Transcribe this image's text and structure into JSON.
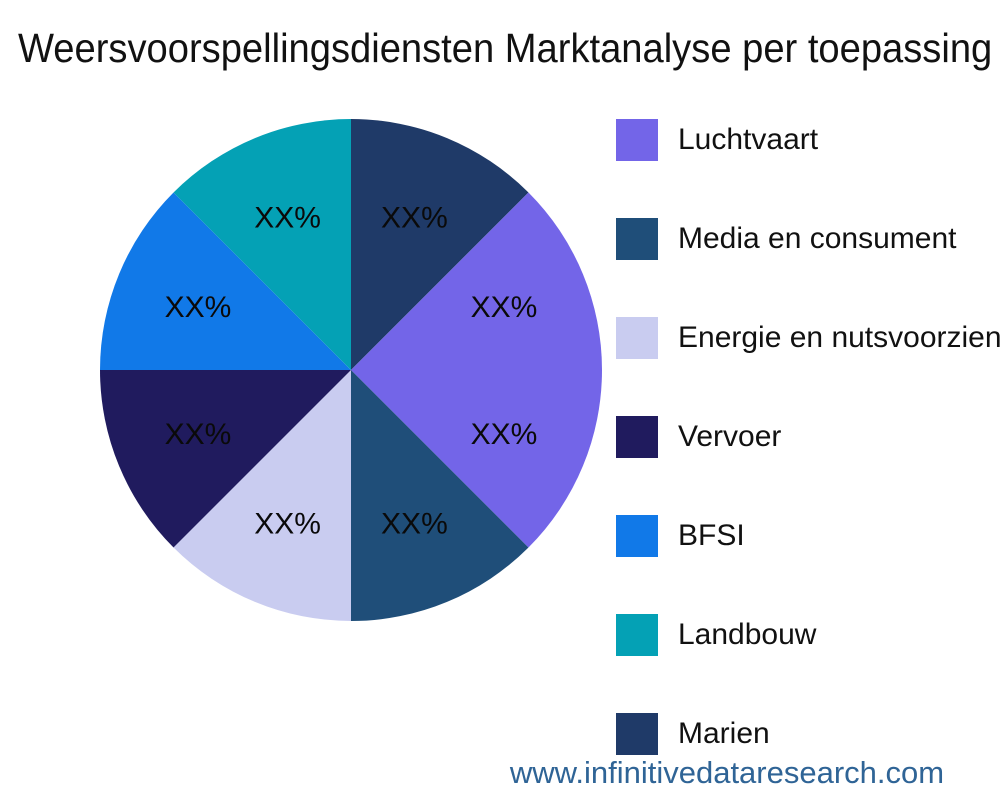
{
  "header": {
    "title": "Weersvoorspellingsdiensten Marktanalyse per toepassing"
  },
  "watermark": {
    "text": "www.infinitivedataresearch.com",
    "color": "#2F6496"
  },
  "chart_data": {
    "type": "pie",
    "title": "Weersvoorspellingsdiensten Marktanalyse per toepassing",
    "legend_position": "right",
    "start_angle_deg": 0,
    "direction": "clockwise",
    "data_label_color": "#0a0a0a",
    "slices": [
      {
        "legend_label": "Luchtvaart",
        "value_pct": 12.5,
        "data_label": "XX%",
        "color": "#7365E8",
        "show_in_legend": true
      },
      {
        "legend_label": "Media en consument",
        "value_pct": 12.5,
        "data_label": "XX%",
        "color": "#1F4E79",
        "show_in_legend": true
      },
      {
        "legend_label": "Energie en nutsvoorziening",
        "value_pct": 12.5,
        "data_label": "XX%",
        "color": "#C9CCF0",
        "show_in_legend": true
      },
      {
        "legend_label": "Vervoer",
        "value_pct": 12.5,
        "data_label": "XX%",
        "color": "#201B5E",
        "show_in_legend": true
      },
      {
        "legend_label": "BFSI",
        "value_pct": 12.5,
        "data_label": "XX%",
        "color": "#1179E8",
        "show_in_legend": true
      },
      {
        "legend_label": "Landbouw",
        "value_pct": 12.5,
        "data_label": "XX%",
        "color": "#04A1B5",
        "show_in_legend": true
      },
      {
        "legend_label": "Marien",
        "value_pct": 12.5,
        "data_label": "XX%",
        "color": "#1F3A68",
        "show_in_legend": true
      },
      {
        "legend_label": "",
        "value_pct": 12.5,
        "data_label": "XX%",
        "color": "#7365E8",
        "show_in_legend": false
      }
    ]
  }
}
